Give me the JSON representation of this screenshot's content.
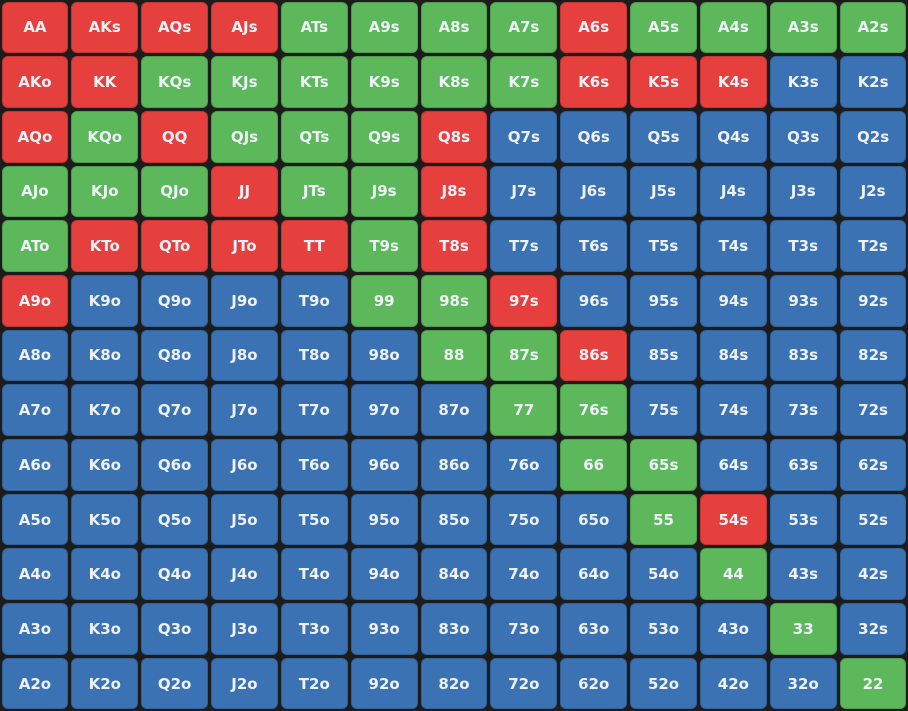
{
  "grid": {
    "rows": [
      {
        "labels": [
          "AA",
          "AKs",
          "AQs",
          "AJs",
          "ATs",
          "A9s",
          "A8s",
          "A7s",
          "A6s",
          "A5s",
          "A4s",
          "A3s",
          "A2s"
        ],
        "colors": [
          "#e5403e",
          "#e5403e",
          "#e5403e",
          "#e5403e",
          "#5db85c",
          "#5db85c",
          "#5db85c",
          "#5db85c",
          "#e5403e",
          "#5db85c",
          "#5db85c",
          "#5db85c",
          "#5db85c"
        ]
      },
      {
        "labels": [
          "AKo",
          "KK",
          "KQs",
          "KJs",
          "KTs",
          "K9s",
          "K8s",
          "K7s",
          "K6s",
          "K5s",
          "K4s",
          "K3s",
          "K2s"
        ],
        "colors": [
          "#e5403e",
          "#e5403e",
          "#5db85c",
          "#5db85c",
          "#5db85c",
          "#5db85c",
          "#5db85c",
          "#5db85c",
          "#e5403e",
          "#e5403e",
          "#e5403e",
          "#3a72b4",
          "#3a72b4"
        ]
      },
      {
        "labels": [
          "AQo",
          "KQo",
          "QQ",
          "QJs",
          "QTs",
          "Q9s",
          "Q8s",
          "Q7s",
          "Q6s",
          "Q5s",
          "Q4s",
          "Q3s",
          "Q2s"
        ],
        "colors": [
          "#e5403e",
          "#5db85c",
          "#e5403e",
          "#5db85c",
          "#5db85c",
          "#5db85c",
          "#e5403e",
          "#3a72b4",
          "#3a72b4",
          "#3a72b4",
          "#3a72b4",
          "#3a72b4",
          "#3a72b4"
        ]
      },
      {
        "labels": [
          "AJo",
          "KJo",
          "QJo",
          "JJ",
          "JTs",
          "J9s",
          "J8s",
          "J7s",
          "J6s",
          "J5s",
          "J4s",
          "J3s",
          "J2s"
        ],
        "colors": [
          "#5db85c",
          "#5db85c",
          "#5db85c",
          "#e5403e",
          "#5db85c",
          "#5db85c",
          "#e5403e",
          "#3a72b4",
          "#3a72b4",
          "#3a72b4",
          "#3a72b4",
          "#3a72b4",
          "#3a72b4"
        ]
      },
      {
        "labels": [
          "ATo",
          "KTo",
          "QTo",
          "JTo",
          "TT",
          "T9s",
          "T8s",
          "T7s",
          "T6s",
          "T5s",
          "T4s",
          "T3s",
          "T2s"
        ],
        "colors": [
          "#5db85c",
          "#e5403e",
          "#e5403e",
          "#e5403e",
          "#e5403e",
          "#5db85c",
          "#e5403e",
          "#3a72b4",
          "#3a72b4",
          "#3a72b4",
          "#3a72b4",
          "#3a72b4",
          "#3a72b4"
        ]
      },
      {
        "labels": [
          "A9o",
          "K9o",
          "Q9o",
          "J9o",
          "T9o",
          "99",
          "98s",
          "97s",
          "96s",
          "95s",
          "94s",
          "93s",
          "92s"
        ],
        "colors": [
          "#e5403e",
          "#3a72b4",
          "#3a72b4",
          "#3a72b4",
          "#3a72b4",
          "#5db85c",
          "#5db85c",
          "#e5403e",
          "#3a72b4",
          "#3a72b4",
          "#3a72b4",
          "#3a72b4",
          "#3a72b4"
        ]
      },
      {
        "labels": [
          "A8o",
          "K8o",
          "Q8o",
          "J8o",
          "T8o",
          "98o",
          "88",
          "87s",
          "86s",
          "85s",
          "84s",
          "83s",
          "82s"
        ],
        "colors": [
          "#3a72b4",
          "#3a72b4",
          "#3a72b4",
          "#3a72b4",
          "#3a72b4",
          "#3a72b4",
          "#5db85c",
          "#5db85c",
          "#e5403e",
          "#3a72b4",
          "#3a72b4",
          "#3a72b4",
          "#3a72b4"
        ]
      },
      {
        "labels": [
          "A7o",
          "K7o",
          "Q7o",
          "J7o",
          "T7o",
          "97o",
          "87o",
          "77",
          "76s",
          "75s",
          "74s",
          "73s",
          "72s"
        ],
        "colors": [
          "#3a72b4",
          "#3a72b4",
          "#3a72b4",
          "#3a72b4",
          "#3a72b4",
          "#3a72b4",
          "#3a72b4",
          "#5db85c",
          "#5db85c",
          "#3a72b4",
          "#3a72b4",
          "#3a72b4",
          "#3a72b4"
        ]
      },
      {
        "labels": [
          "A6o",
          "K6o",
          "Q6o",
          "J6o",
          "T6o",
          "96o",
          "86o",
          "76o",
          "66",
          "65s",
          "64s",
          "63s",
          "62s"
        ],
        "colors": [
          "#3a72b4",
          "#3a72b4",
          "#3a72b4",
          "#3a72b4",
          "#3a72b4",
          "#3a72b4",
          "#3a72b4",
          "#3a72b4",
          "#5db85c",
          "#5db85c",
          "#3a72b4",
          "#3a72b4",
          "#3a72b4"
        ]
      },
      {
        "labels": [
          "A5o",
          "K5o",
          "Q5o",
          "J5o",
          "T5o",
          "95o",
          "85o",
          "75o",
          "65o",
          "55",
          "54s",
          "53s",
          "52s"
        ],
        "colors": [
          "#3a72b4",
          "#3a72b4",
          "#3a72b4",
          "#3a72b4",
          "#3a72b4",
          "#3a72b4",
          "#3a72b4",
          "#3a72b4",
          "#3a72b4",
          "#5db85c",
          "#e5403e",
          "#3a72b4",
          "#3a72b4"
        ]
      },
      {
        "labels": [
          "A4o",
          "K4o",
          "Q4o",
          "J4o",
          "T4o",
          "94o",
          "84o",
          "74o",
          "64o",
          "54o",
          "44",
          "43s",
          "42s"
        ],
        "colors": [
          "#3a72b4",
          "#3a72b4",
          "#3a72b4",
          "#3a72b4",
          "#3a72b4",
          "#3a72b4",
          "#3a72b4",
          "#3a72b4",
          "#3a72b4",
          "#3a72b4",
          "#5db85c",
          "#3a72b4",
          "#3a72b4"
        ]
      },
      {
        "labels": [
          "A3o",
          "K3o",
          "Q3o",
          "J3o",
          "T3o",
          "93o",
          "83o",
          "73o",
          "63o",
          "53o",
          "43o",
          "33",
          "32s"
        ],
        "colors": [
          "#3a72b4",
          "#3a72b4",
          "#3a72b4",
          "#3a72b4",
          "#3a72b4",
          "#3a72b4",
          "#3a72b4",
          "#3a72b4",
          "#3a72b4",
          "#3a72b4",
          "#3a72b4",
          "#5db85c",
          "#3a72b4"
        ]
      },
      {
        "labels": [
          "A2o",
          "K2o",
          "Q2o",
          "J2o",
          "T2o",
          "92o",
          "82o",
          "72o",
          "62o",
          "52o",
          "42o",
          "32o",
          "22"
        ],
        "colors": [
          "#3a72b4",
          "#3a72b4",
          "#3a72b4",
          "#3a72b4",
          "#3a72b4",
          "#3a72b4",
          "#3a72b4",
          "#3a72b4",
          "#3a72b4",
          "#3a72b4",
          "#3a72b4",
          "#3a72b4",
          "#5db85c"
        ]
      }
    ]
  }
}
